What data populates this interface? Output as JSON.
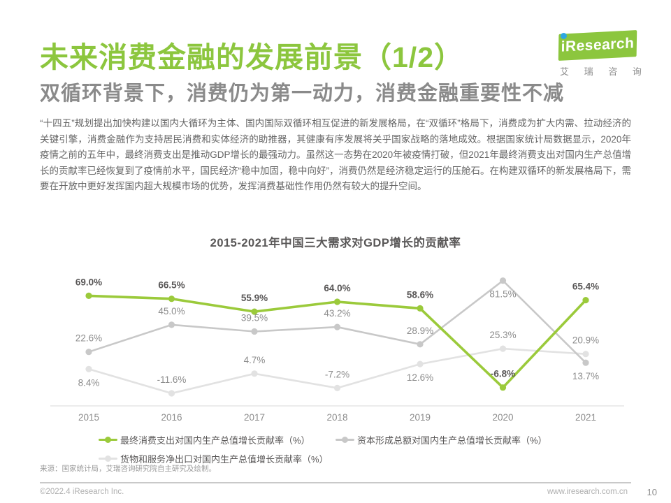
{
  "page": {
    "title": "未来消费金融的发展前景（1/2）",
    "subtitle": "双循环背景下，消费仍为第一动力，消费金融重要性不减",
    "body": "“十四五”规划提出加快构建以国内大循环为主体、国内国际双循环相互促进的新发展格局，在“双循环”格局下，消费成为扩大内需、拉动经济的关键引擎，消费金融作为支持居民消费和实体经济的助推器，其健康有序发展将关乎国家战略的落地成效。根据国家统计局数据显示，2020年疫情之前的五年中，最终消费支出是推动GDP增长的最强动力。虽然这一态势在2020年被疫情打破，但2021年最终消费支出对国内生产总值增长的贡献率已经恢复到了疫情前水平，国民经济“稳中加固，稳中向好”，消费仍然是经济稳定运行的压舱石。在构建双循环的新发展格局下，需要在开放中更好发挥国内超大规模市场的优势，发挥消费基础性作用仍然有较大的提升空间。"
  },
  "logo": {
    "brand_i": "i",
    "brand": "Research",
    "cn": "艾 瑞 咨 询"
  },
  "chart_data": {
    "type": "line",
    "title": "2015-2021年中国三大需求对GDP增长的贡献率",
    "categories": [
      "2015",
      "2016",
      "2017",
      "2018",
      "2019",
      "2020",
      "2021"
    ],
    "series": [
      {
        "name": "最终消费支出对国内生产总值增长贡献率（%）",
        "color": "#9BCA3B",
        "values": [
          69.0,
          66.5,
          55.9,
          64.0,
          58.6,
          -6.8,
          65.4
        ],
        "label_bold": true,
        "label_color": "#595757",
        "line_width": 3.6,
        "label_pos": [
          "above",
          "above",
          "above",
          "above",
          "above",
          "above",
          "above"
        ]
      },
      {
        "name": "资本形成总额对国内生产总值增长贡献率（%）",
        "color": "#C8C8C8",
        "values": [
          22.6,
          45.0,
          39.5,
          43.2,
          28.9,
          81.5,
          13.7
        ],
        "label_bold": false,
        "label_color": "#8C8C8C",
        "line_width": 2.6,
        "label_pos": [
          "above",
          "above",
          "above",
          "above",
          "above",
          "below",
          "below"
        ]
      },
      {
        "name": "货物和服务净出口对国内生产总值增长贡献率（%）",
        "color": "#E2E2E2",
        "values": [
          8.4,
          -11.6,
          4.7,
          -7.2,
          12.6,
          25.3,
          20.9
        ],
        "label_bold": false,
        "label_color": "#8C8C8C",
        "line_width": 2.6,
        "label_pos": [
          "below",
          "above",
          "above",
          "above",
          "below",
          "above",
          "above"
        ]
      }
    ],
    "ylim": [
      -22,
      90
    ],
    "grid": false,
    "legend_position": "bottom",
    "legend_rows": [
      [
        0,
        1
      ],
      [
        2
      ]
    ],
    "axis_color": "#D9D9D9",
    "tick_color": "#8C8C8C"
  },
  "source_note": "来源：国家统计局，艾瑞咨询研究院自主研究及绘制。",
  "footer": {
    "copyright": "©2022.4 iResearch Inc.",
    "website": "www.iresearch.com.cn",
    "page_number": "10"
  },
  "colors": {
    "title_green": "#8CC63E",
    "subtitle_gray": "#8A8A8A",
    "logo_green": "#8CC63E",
    "logo_dot_blue": "#2EA7E0"
  }
}
